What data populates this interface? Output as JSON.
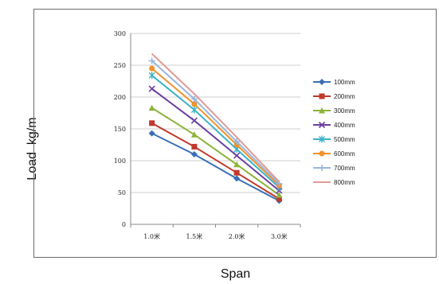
{
  "chart_data": {
    "type": "line",
    "xlabel": "Span",
    "ylabel": "Load  kg/m",
    "categories": [
      "1.0米",
      "1.5米",
      "2.0米",
      "3.0米"
    ],
    "ylim": [
      0,
      300
    ],
    "yticks": [
      "0",
      "50",
      "100",
      "150",
      "200",
      "250",
      "300"
    ],
    "grid": true,
    "legend_position": "right",
    "series": [
      {
        "name": "100mm",
        "values": [
          143,
          110,
          72,
          37
        ],
        "color": "#3a6fb5",
        "marker": "diamond"
      },
      {
        "name": "200mm",
        "values": [
          159,
          122,
          81,
          40
        ],
        "color": "#c0392b",
        "marker": "square"
      },
      {
        "name": "300mm",
        "values": [
          183,
          141,
          94,
          46
        ],
        "color": "#8cb33a",
        "marker": "triangle"
      },
      {
        "name": "400mm",
        "values": [
          213,
          163,
          108,
          53
        ],
        "color": "#6b3fa0",
        "marker": "x"
      },
      {
        "name": "500mm",
        "values": [
          234,
          180,
          118,
          58
        ],
        "color": "#3bb3c8",
        "marker": "star"
      },
      {
        "name": "600mm",
        "values": [
          245,
          189,
          125,
          61
        ],
        "color": "#f0922b",
        "marker": "circle"
      },
      {
        "name": "700mm",
        "values": [
          257,
          197,
          130,
          64
        ],
        "color": "#9ab6de",
        "marker": "plus"
      },
      {
        "name": "800mm",
        "values": [
          268,
          205,
          137,
          67
        ],
        "color": "#e29a95",
        "marker": "none"
      }
    ]
  }
}
